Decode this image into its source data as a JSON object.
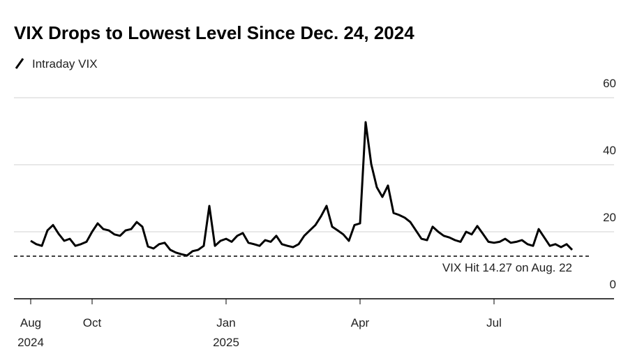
{
  "chart_data": {
    "type": "line",
    "title": "VIX Drops to Lowest Level Since Dec. 24, 2024",
    "annotation": "VIX Hit 14.27 on Aug. 22",
    "reference_line": 12.7,
    "categories": [
      "Aug 2024",
      null,
      null,
      null,
      null,
      null,
      null,
      null,
      null,
      null,
      null,
      "Oct",
      null,
      null,
      null,
      null,
      null,
      null,
      null,
      null,
      null,
      null,
      null,
      null,
      null,
      null,
      null,
      null,
      null,
      null,
      null,
      null,
      null,
      null,
      null,
      "Jan 2025",
      null,
      null,
      null,
      null,
      null,
      null,
      null,
      null,
      null,
      null,
      null,
      null,
      null,
      null,
      null,
      null,
      null,
      null,
      null,
      null,
      null,
      null,
      null,
      "Apr",
      null,
      null,
      null,
      null,
      null,
      null,
      null,
      null,
      null,
      null,
      null,
      null,
      null,
      null,
      null,
      null,
      null,
      null,
      null,
      null,
      null,
      null,
      null,
      "Jul",
      null,
      null,
      null,
      null,
      null,
      null,
      null,
      null,
      null,
      null,
      null,
      null,
      null,
      null
    ],
    "series": [
      {
        "name": "Intraday VIX",
        "color": "#000000",
        "values": [
          17.3,
          16.3,
          15.8,
          20.4,
          22,
          19.4,
          17.3,
          17.9,
          15.8,
          16.3,
          17,
          20,
          22.5,
          20.8,
          20.4,
          19.2,
          18.8,
          20.4,
          20.8,
          22.9,
          21.5,
          15.6,
          15,
          16.3,
          16.7,
          14.6,
          13.8,
          13.3,
          12.9,
          14.2,
          14.6,
          15.8,
          27.7,
          15.8,
          17.3,
          17.9,
          17,
          18.8,
          19.6,
          16.7,
          16.3,
          15.8,
          17.5,
          17,
          18.8,
          16.3,
          15.8,
          15.4,
          16.3,
          18.8,
          20.4,
          22,
          24.6,
          27.7,
          21.5,
          20.4,
          19.2,
          17.3,
          22,
          22.5,
          52.7,
          40.2,
          33.3,
          30.4,
          33.8,
          25.6,
          25,
          24.2,
          22.9,
          20.4,
          17.9,
          17.5,
          21.5,
          20,
          18.8,
          18.3,
          17.5,
          17,
          20,
          19.2,
          21.7,
          19.4,
          17,
          16.7,
          17,
          17.9,
          16.7,
          17,
          17.5,
          16.3,
          15.8,
          20.8,
          18.3,
          15.8,
          16.3,
          15.4,
          16.3,
          14.6
        ]
      }
    ],
    "ylim": [
      0,
      60
    ],
    "yticks": [
      0,
      20,
      40,
      60
    ],
    "grid": true
  }
}
